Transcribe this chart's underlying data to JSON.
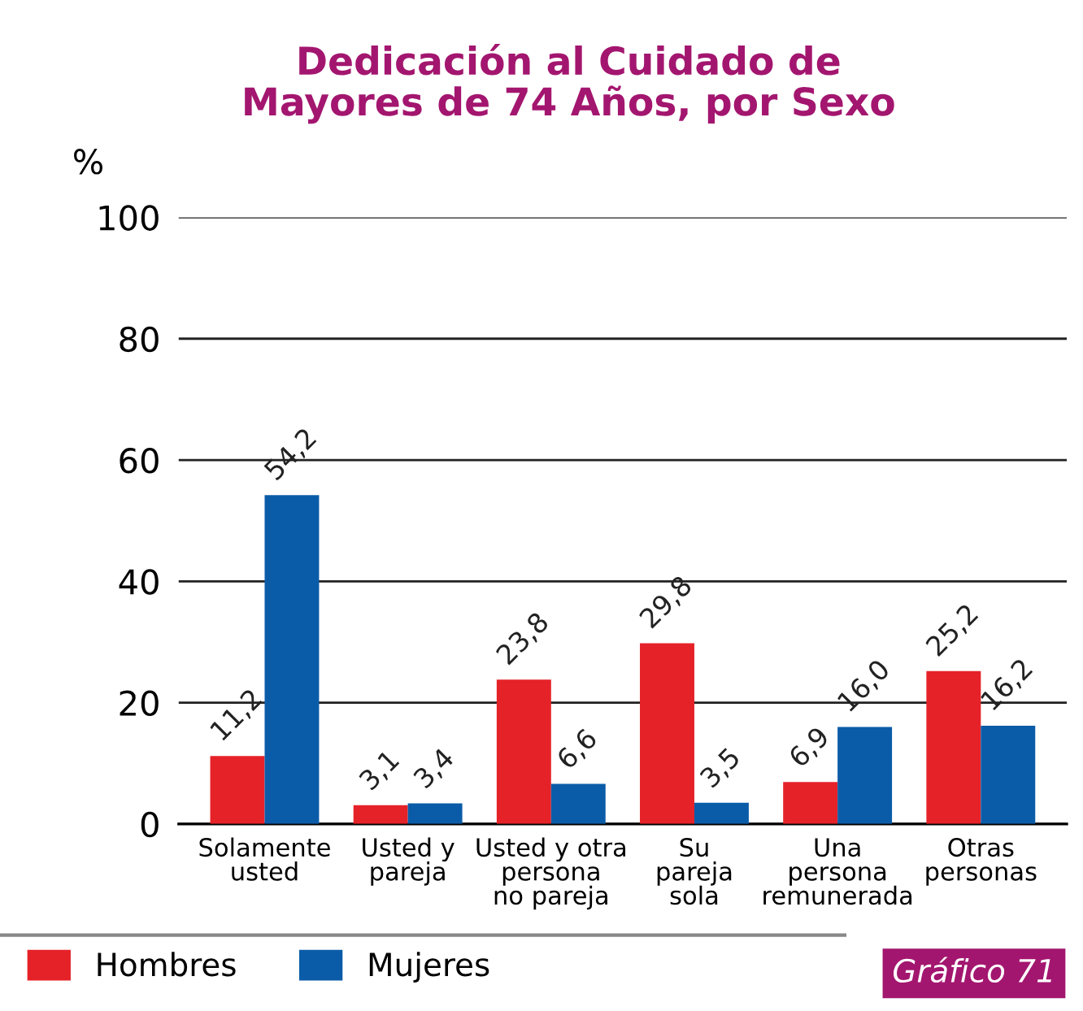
{
  "chart_data": {
    "type": "bar",
    "title": "Dedicación al Cuidado de\nMayores de 74 Años, por Sexo",
    "ylabel": "%",
    "categories": [
      "Solamente\nusted",
      "Usted y\npareja",
      "Usted y otra\npersona\nno pareja",
      "Su\npareja\nsola",
      "Una\npersona\nremunerada",
      "Otras\npersonas"
    ],
    "series": [
      {
        "name": "Hombres",
        "color": "#e52228",
        "values": [
          11.2,
          3.1,
          23.8,
          29.8,
          6.9,
          25.2
        ],
        "value_labels": [
          "11,2",
          "3,1",
          "23,8",
          "29,8",
          "6,9",
          "25,2"
        ]
      },
      {
        "name": "Mujeres",
        "color": "#0b5ca8",
        "values": [
          54.2,
          3.4,
          6.6,
          3.5,
          16.0,
          16.2
        ],
        "value_labels": [
          "54,2",
          "3,4",
          "6,6",
          "3,5",
          "16,0",
          "16,2"
        ]
      }
    ],
    "ylim": [
      0,
      100
    ],
    "yticks": [
      0,
      20,
      40,
      60,
      80,
      100
    ],
    "grid": "y",
    "legend": "bottom left",
    "annotations": [
      "Gráfico 71"
    ]
  }
}
